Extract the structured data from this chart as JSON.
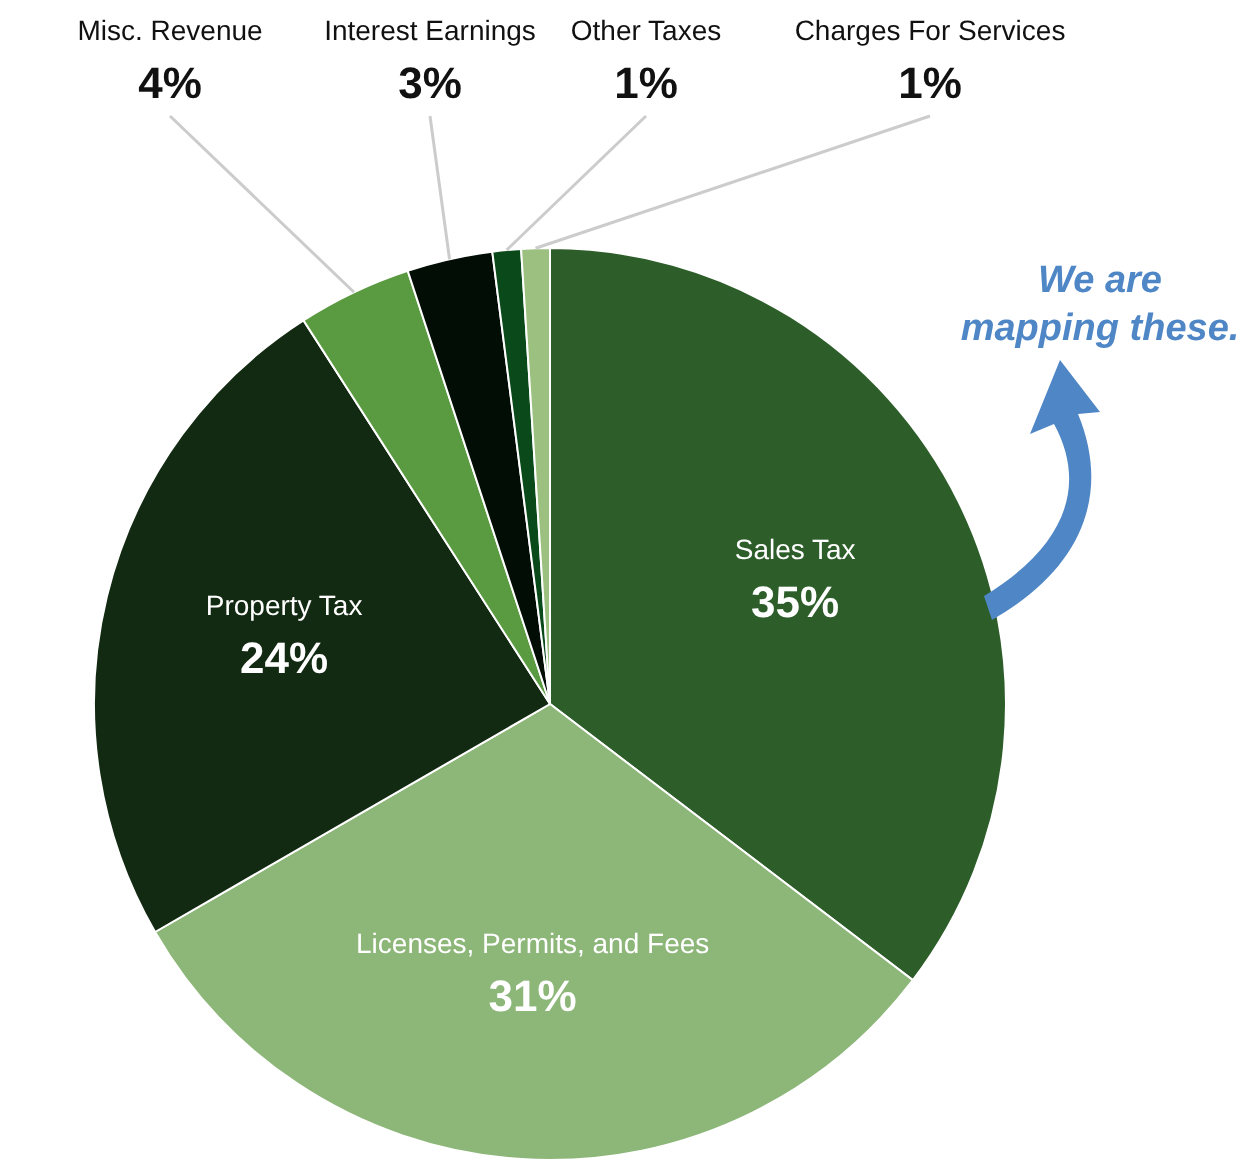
{
  "chart_data": {
    "type": "pie",
    "categories": [
      "Sales Tax",
      "Licenses, Permits, and Fees",
      "Property Tax",
      "Misc. Revenue",
      "Interest Earnings",
      "Other Taxes",
      "Charges For Services"
    ],
    "values": [
      35,
      31,
      24,
      4,
      3,
      1,
      1
    ],
    "value_labels": [
      "35%",
      "31%",
      "24%",
      "4%",
      "3%",
      "1%",
      "1%"
    ],
    "colors": [
      "#2d5e2a",
      "#8db679",
      "#132a12",
      "#5a9a40",
      "#020d05",
      "#0a4a1a",
      "#9cc080"
    ],
    "annotations": [
      "We are mapping these."
    ]
  }
}
